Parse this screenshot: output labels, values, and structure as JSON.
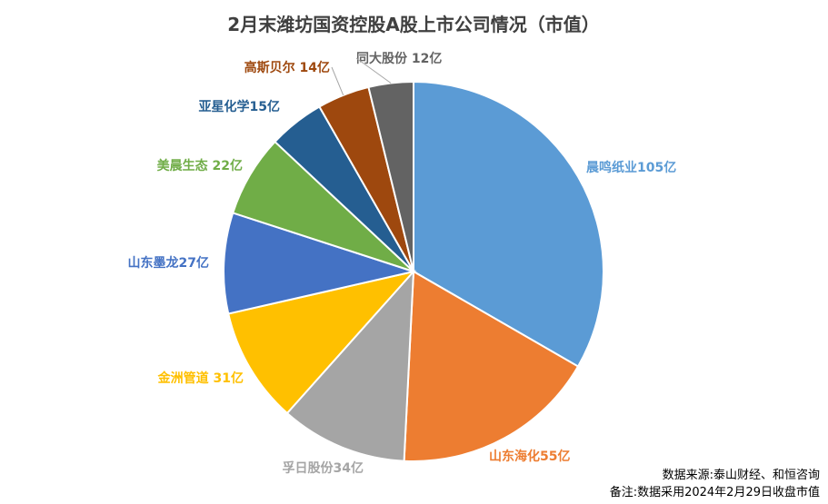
{
  "chart_data": {
    "type": "pie",
    "title": "2月末潍坊国资控股A股上市公司情况（市值）",
    "slices": [
      {
        "name": "晨鸣纸业",
        "value": 105,
        "label": "晨鸣纸业105亿",
        "color": "#5B9BD5"
      },
      {
        "name": "山东海化",
        "value": 55,
        "label": "山东海化55亿",
        "color": "#ED7D31"
      },
      {
        "name": "孚日股份",
        "value": 34,
        "label": "孚日股份34亿",
        "color": "#A5A5A5"
      },
      {
        "name": "金洲管道",
        "value": 31,
        "label": "金洲管道 31亿",
        "color": "#FFC000"
      },
      {
        "name": "山东墨龙",
        "value": 27,
        "label": "山东墨龙27亿",
        "color": "#4472C4"
      },
      {
        "name": "美晨生态",
        "value": 22,
        "label": "美晨生态 22亿",
        "color": "#70AD47"
      },
      {
        "name": "亚星化学",
        "value": 15,
        "label": "亚星化学15亿",
        "color": "#255E91"
      },
      {
        "name": "高斯贝尔",
        "value": 14,
        "label": "高斯贝尔 14亿",
        "color": "#9E480E"
      },
      {
        "name": "同大股份",
        "value": 12,
        "label": "同大股份 12亿",
        "color": "#636363"
      }
    ]
  },
  "footer": {
    "source": "数据来源:泰山财经、和恒咨询",
    "note": "备注:数据采用2024年2月29日收盘市值"
  }
}
